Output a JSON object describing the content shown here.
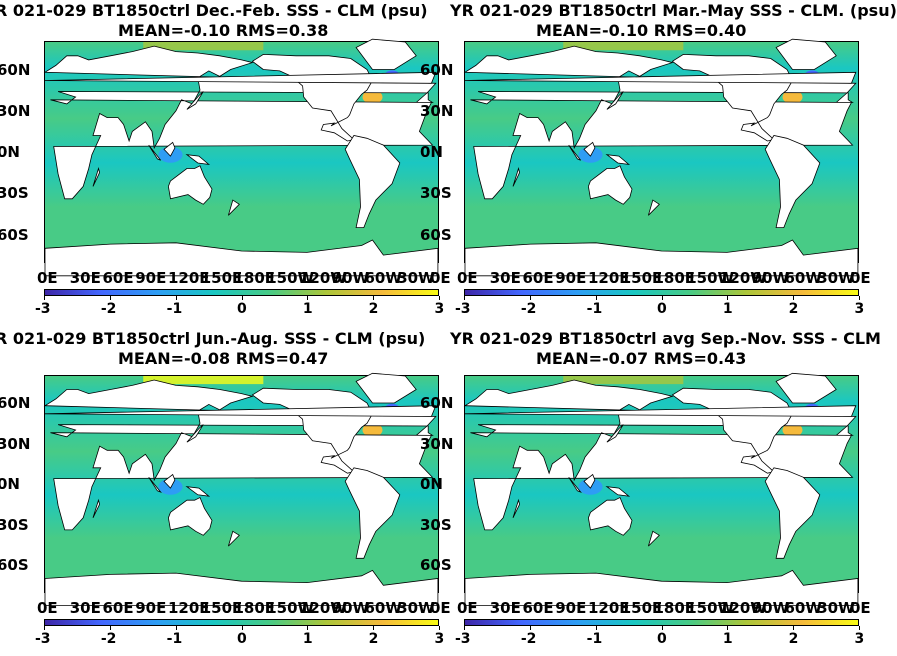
{
  "panels": [
    {
      "title1": "R 021-029 BT1850ctrl  Dec.-Feb. SSS - CLM (psu)",
      "title2": "MEAN=-0.10   RMS=0.38"
    },
    {
      "title1": "YR 021-029 BT1850ctrl Mar.-May SSS - CLM. (psu)",
      "title2": "MEAN=-0.10   RMS=0.40"
    },
    {
      "title1": "R 021-029 BT1850ctrl Jun.-Aug. SSS - CLM (psu)",
      "title2": "MEAN=-0.08   RMS=0.47"
    },
    {
      "title1": "YR 021-029 BT1850ctrl avg Sep.-Nov. SSS - CLM",
      "title2": "MEAN=-0.07   RMS=0.43"
    }
  ],
  "lat_labels": [
    "60N",
    "30N",
    "0N",
    "30S",
    "60S"
  ],
  "lon_labels": [
    "0E",
    "30E",
    "60E",
    "90E",
    "120E",
    "150E",
    "180E",
    "150W",
    "120W",
    "90W",
    "60W",
    "30W",
    "0E"
  ],
  "colorbar": {
    "ticks": [
      "-3",
      "-2",
      "-1",
      "0",
      "1",
      "2",
      "3"
    ],
    "colormap": "parula",
    "colors": [
      "#3e26a8",
      "#4367fe",
      "#2e9df4",
      "#1ac7c2",
      "#48cb86",
      "#abc63a",
      "#f5ba3c",
      "#f9fb15"
    ],
    "land_color": "#ffffff",
    "ocean_base_color": "#5bbf8e"
  },
  "chart_data": [
    {
      "type": "heatmap",
      "title": "R 021-029 BT1850ctrl  Dec.-Feb. SSS - CLM (psu)",
      "subtitle": "MEAN=-0.10   RMS=0.38",
      "x_range": [
        0,
        360
      ],
      "y_range": [
        -80,
        80
      ],
      "clim": [
        -3,
        3
      ],
      "mean": -0.1,
      "rms": 0.38
    },
    {
      "type": "heatmap",
      "title": "YR 021-029 BT1850ctrl Mar.-May SSS - CLM. (psu)",
      "subtitle": "MEAN=-0.10   RMS=0.40",
      "x_range": [
        0,
        360
      ],
      "y_range": [
        -80,
        80
      ],
      "clim": [
        -3,
        3
      ],
      "mean": -0.1,
      "rms": 0.4
    },
    {
      "type": "heatmap",
      "title": "R 021-029 BT1850ctrl Jun.-Aug. SSS - CLM (psu)",
      "subtitle": "MEAN=-0.08   RMS=0.47",
      "x_range": [
        0,
        360
      ],
      "y_range": [
        -80,
        80
      ],
      "clim": [
        -3,
        3
      ],
      "mean": -0.08,
      "rms": 0.47
    },
    {
      "type": "heatmap",
      "title": "YR 021-029 BT1850ctrl avg Sep.-Nov. SSS - CLM",
      "subtitle": "MEAN=-0.07   RMS=0.43",
      "x_range": [
        0,
        360
      ],
      "y_range": [
        -80,
        80
      ],
      "clim": [
        -3,
        3
      ],
      "mean": -0.07,
      "rms": 0.43
    }
  ]
}
